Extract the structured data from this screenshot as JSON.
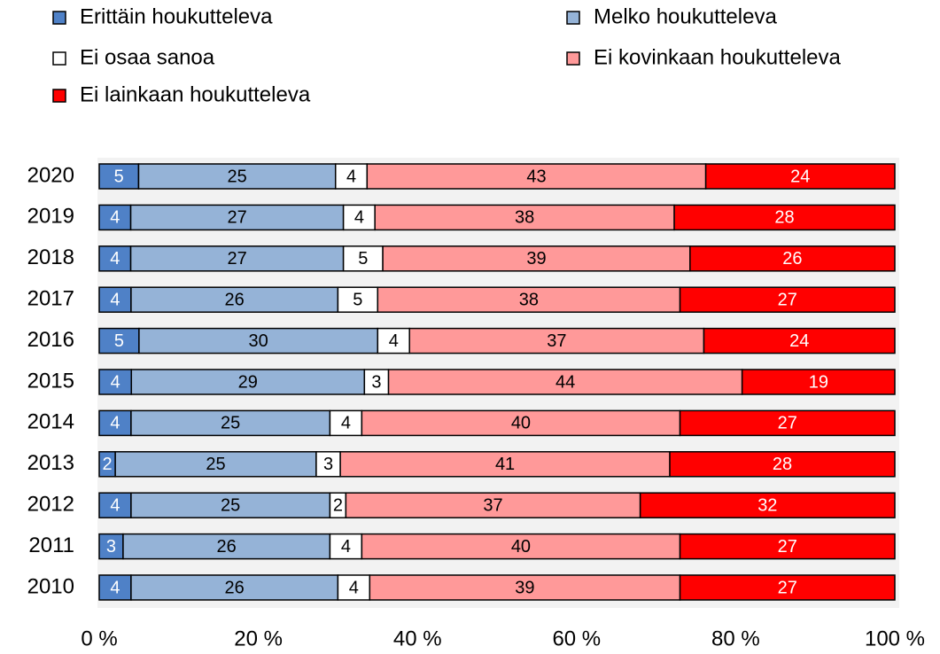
{
  "chart_data": {
    "type": "bar",
    "orientation": "horizontal",
    "stacked": "percent",
    "categories": [
      "2020",
      "2019",
      "2018",
      "2017",
      "2016",
      "2015",
      "2014",
      "2013",
      "2012",
      "2011",
      "2010"
    ],
    "series": [
      {
        "name": "Erittäin houkutteleva",
        "color": "#4f81c7",
        "values": [
          5,
          4,
          4,
          4,
          5,
          4,
          4,
          2,
          4,
          3,
          4
        ]
      },
      {
        "name": "Melko houkutteleva",
        "color": "#95b3d7",
        "values": [
          25,
          27,
          27,
          26,
          30,
          29,
          25,
          25,
          25,
          26,
          26
        ]
      },
      {
        "name": "Ei osaa sanoa",
        "color": "#ffffff",
        "values": [
          4,
          4,
          5,
          5,
          4,
          3,
          4,
          3,
          2,
          4,
          4
        ]
      },
      {
        "name": "Ei kovinkaan houkutteleva",
        "color": "#ff9999",
        "values": [
          43,
          38,
          39,
          38,
          37,
          44,
          40,
          41,
          37,
          40,
          39
        ]
      },
      {
        "name": "Ei lainkaan houkutteleva",
        "color": "#ff0000",
        "values": [
          24,
          28,
          26,
          27,
          24,
          19,
          27,
          28,
          32,
          27,
          27
        ]
      }
    ],
    "xlim": [
      0,
      100
    ],
    "xticks": [
      {
        "value": 0,
        "label": "0 %"
      },
      {
        "value": 20,
        "label": "20 %"
      },
      {
        "value": 40,
        "label": "40 %"
      },
      {
        "value": 60,
        "label": "60 %"
      },
      {
        "value": 80,
        "label": "80 %"
      },
      {
        "value": 100,
        "label": "100 %"
      }
    ],
    "legend": "top"
  }
}
